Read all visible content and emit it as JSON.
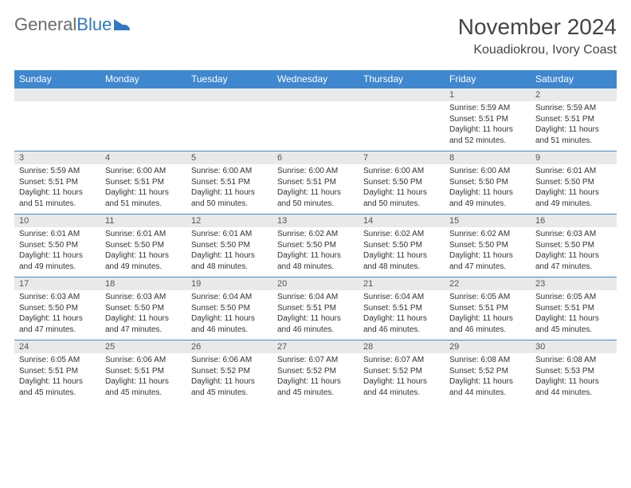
{
  "brand": {
    "part1": "General",
    "part2": "Blue"
  },
  "title": "November 2024",
  "location": "Kouadiokrou, Ivory Coast",
  "colors": {
    "header_bg": "#3f87cf",
    "header_text": "#ffffff",
    "daynum_bg": "#e9e9e9",
    "week_border": "#3f87cf",
    "body_text": "#333333"
  },
  "weekdays": [
    "Sunday",
    "Monday",
    "Tuesday",
    "Wednesday",
    "Thursday",
    "Friday",
    "Saturday"
  ],
  "weeks": [
    [
      {
        "num": "",
        "sunrise": "",
        "sunset": "",
        "daylight": ""
      },
      {
        "num": "",
        "sunrise": "",
        "sunset": "",
        "daylight": ""
      },
      {
        "num": "",
        "sunrise": "",
        "sunset": "",
        "daylight": ""
      },
      {
        "num": "",
        "sunrise": "",
        "sunset": "",
        "daylight": ""
      },
      {
        "num": "",
        "sunrise": "",
        "sunset": "",
        "daylight": ""
      },
      {
        "num": "1",
        "sunrise": "Sunrise: 5:59 AM",
        "sunset": "Sunset: 5:51 PM",
        "daylight": "Daylight: 11 hours and 52 minutes."
      },
      {
        "num": "2",
        "sunrise": "Sunrise: 5:59 AM",
        "sunset": "Sunset: 5:51 PM",
        "daylight": "Daylight: 11 hours and 51 minutes."
      }
    ],
    [
      {
        "num": "3",
        "sunrise": "Sunrise: 5:59 AM",
        "sunset": "Sunset: 5:51 PM",
        "daylight": "Daylight: 11 hours and 51 minutes."
      },
      {
        "num": "4",
        "sunrise": "Sunrise: 6:00 AM",
        "sunset": "Sunset: 5:51 PM",
        "daylight": "Daylight: 11 hours and 51 minutes."
      },
      {
        "num": "5",
        "sunrise": "Sunrise: 6:00 AM",
        "sunset": "Sunset: 5:51 PM",
        "daylight": "Daylight: 11 hours and 50 minutes."
      },
      {
        "num": "6",
        "sunrise": "Sunrise: 6:00 AM",
        "sunset": "Sunset: 5:51 PM",
        "daylight": "Daylight: 11 hours and 50 minutes."
      },
      {
        "num": "7",
        "sunrise": "Sunrise: 6:00 AM",
        "sunset": "Sunset: 5:50 PM",
        "daylight": "Daylight: 11 hours and 50 minutes."
      },
      {
        "num": "8",
        "sunrise": "Sunrise: 6:00 AM",
        "sunset": "Sunset: 5:50 PM",
        "daylight": "Daylight: 11 hours and 49 minutes."
      },
      {
        "num": "9",
        "sunrise": "Sunrise: 6:01 AM",
        "sunset": "Sunset: 5:50 PM",
        "daylight": "Daylight: 11 hours and 49 minutes."
      }
    ],
    [
      {
        "num": "10",
        "sunrise": "Sunrise: 6:01 AM",
        "sunset": "Sunset: 5:50 PM",
        "daylight": "Daylight: 11 hours and 49 minutes."
      },
      {
        "num": "11",
        "sunrise": "Sunrise: 6:01 AM",
        "sunset": "Sunset: 5:50 PM",
        "daylight": "Daylight: 11 hours and 49 minutes."
      },
      {
        "num": "12",
        "sunrise": "Sunrise: 6:01 AM",
        "sunset": "Sunset: 5:50 PM",
        "daylight": "Daylight: 11 hours and 48 minutes."
      },
      {
        "num": "13",
        "sunrise": "Sunrise: 6:02 AM",
        "sunset": "Sunset: 5:50 PM",
        "daylight": "Daylight: 11 hours and 48 minutes."
      },
      {
        "num": "14",
        "sunrise": "Sunrise: 6:02 AM",
        "sunset": "Sunset: 5:50 PM",
        "daylight": "Daylight: 11 hours and 48 minutes."
      },
      {
        "num": "15",
        "sunrise": "Sunrise: 6:02 AM",
        "sunset": "Sunset: 5:50 PM",
        "daylight": "Daylight: 11 hours and 47 minutes."
      },
      {
        "num": "16",
        "sunrise": "Sunrise: 6:03 AM",
        "sunset": "Sunset: 5:50 PM",
        "daylight": "Daylight: 11 hours and 47 minutes."
      }
    ],
    [
      {
        "num": "17",
        "sunrise": "Sunrise: 6:03 AM",
        "sunset": "Sunset: 5:50 PM",
        "daylight": "Daylight: 11 hours and 47 minutes."
      },
      {
        "num": "18",
        "sunrise": "Sunrise: 6:03 AM",
        "sunset": "Sunset: 5:50 PM",
        "daylight": "Daylight: 11 hours and 47 minutes."
      },
      {
        "num": "19",
        "sunrise": "Sunrise: 6:04 AM",
        "sunset": "Sunset: 5:50 PM",
        "daylight": "Daylight: 11 hours and 46 minutes."
      },
      {
        "num": "20",
        "sunrise": "Sunrise: 6:04 AM",
        "sunset": "Sunset: 5:51 PM",
        "daylight": "Daylight: 11 hours and 46 minutes."
      },
      {
        "num": "21",
        "sunrise": "Sunrise: 6:04 AM",
        "sunset": "Sunset: 5:51 PM",
        "daylight": "Daylight: 11 hours and 46 minutes."
      },
      {
        "num": "22",
        "sunrise": "Sunrise: 6:05 AM",
        "sunset": "Sunset: 5:51 PM",
        "daylight": "Daylight: 11 hours and 46 minutes."
      },
      {
        "num": "23",
        "sunrise": "Sunrise: 6:05 AM",
        "sunset": "Sunset: 5:51 PM",
        "daylight": "Daylight: 11 hours and 45 minutes."
      }
    ],
    [
      {
        "num": "24",
        "sunrise": "Sunrise: 6:05 AM",
        "sunset": "Sunset: 5:51 PM",
        "daylight": "Daylight: 11 hours and 45 minutes."
      },
      {
        "num": "25",
        "sunrise": "Sunrise: 6:06 AM",
        "sunset": "Sunset: 5:51 PM",
        "daylight": "Daylight: 11 hours and 45 minutes."
      },
      {
        "num": "26",
        "sunrise": "Sunrise: 6:06 AM",
        "sunset": "Sunset: 5:52 PM",
        "daylight": "Daylight: 11 hours and 45 minutes."
      },
      {
        "num": "27",
        "sunrise": "Sunrise: 6:07 AM",
        "sunset": "Sunset: 5:52 PM",
        "daylight": "Daylight: 11 hours and 45 minutes."
      },
      {
        "num": "28",
        "sunrise": "Sunrise: 6:07 AM",
        "sunset": "Sunset: 5:52 PM",
        "daylight": "Daylight: 11 hours and 44 minutes."
      },
      {
        "num": "29",
        "sunrise": "Sunrise: 6:08 AM",
        "sunset": "Sunset: 5:52 PM",
        "daylight": "Daylight: 11 hours and 44 minutes."
      },
      {
        "num": "30",
        "sunrise": "Sunrise: 6:08 AM",
        "sunset": "Sunset: 5:53 PM",
        "daylight": "Daylight: 11 hours and 44 minutes."
      }
    ]
  ]
}
